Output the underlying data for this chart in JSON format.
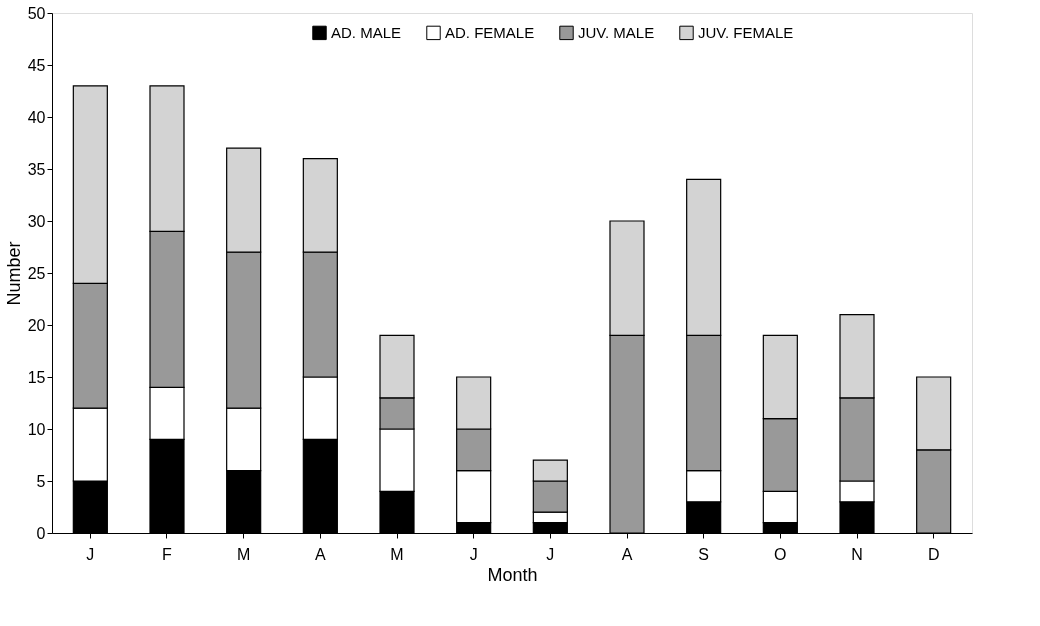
{
  "chart_data": {
    "type": "bar",
    "stacked": true,
    "xlabel": "Month",
    "ylabel": "Number",
    "categories": [
      "J",
      "F",
      "M",
      "A",
      "M",
      "J",
      "J",
      "A",
      "S",
      "O",
      "N",
      "D"
    ],
    "series": [
      {
        "name": "AD. MALE",
        "color": "#000000",
        "values": [
          5,
          9,
          6,
          9,
          4,
          1,
          1,
          0,
          3,
          1,
          3,
          0
        ]
      },
      {
        "name": "AD. FEMALE",
        "color": "#ffffff",
        "values": [
          7,
          5,
          6,
          6,
          6,
          5,
          1,
          0,
          3,
          3,
          2,
          0
        ]
      },
      {
        "name": "JUV. MALE",
        "color": "#999999",
        "values": [
          12,
          15,
          15,
          12,
          3,
          4,
          3,
          19,
          13,
          7,
          8,
          8
        ]
      },
      {
        "name": "JUV. FEMALE",
        "color": "#d3d3d3",
        "values": [
          19,
          14,
          10,
          9,
          6,
          5,
          2,
          11,
          15,
          8,
          8,
          7
        ]
      }
    ],
    "ylim": [
      0,
      50
    ],
    "yticks": [
      0,
      5,
      10,
      15,
      20,
      25,
      30,
      35,
      40,
      45,
      50
    ],
    "grid": false,
    "legend": "top"
  }
}
